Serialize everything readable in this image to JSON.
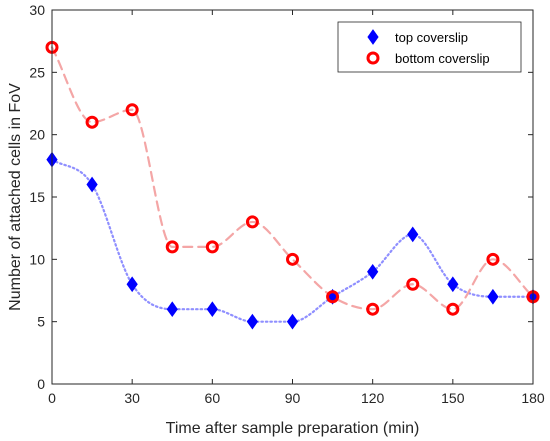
{
  "chart_data": {
    "type": "line",
    "xlabel": "Time after sample preparation (min)",
    "ylabel": "Number of attached cells in FoV",
    "xlim": [
      0,
      180
    ],
    "ylim": [
      0,
      30
    ],
    "xticks": [
      0,
      30,
      60,
      90,
      120,
      150,
      180
    ],
    "yticks": [
      0,
      5,
      10,
      15,
      20,
      25,
      30
    ],
    "grid": false,
    "legend_position": "top-right",
    "x": [
      0,
      15,
      30,
      45,
      60,
      75,
      90,
      105,
      120,
      135,
      150,
      165,
      180
    ],
    "series": [
      {
        "name": "top coverslip",
        "marker": "diamond",
        "color": "#0000ff",
        "line_color": "#8f8fff",
        "line_style": "dotted",
        "values": [
          18,
          16,
          8,
          6,
          6,
          5,
          5,
          7,
          9,
          12,
          8,
          7,
          7
        ]
      },
      {
        "name": "bottom coverslip",
        "marker": "circle",
        "color": "#ff0000",
        "line_color": "#f4a6a6",
        "line_style": "dashed",
        "values": [
          27,
          21,
          22,
          11,
          11,
          13,
          10,
          7,
          6,
          8,
          6,
          10,
          7
        ]
      }
    ]
  }
}
